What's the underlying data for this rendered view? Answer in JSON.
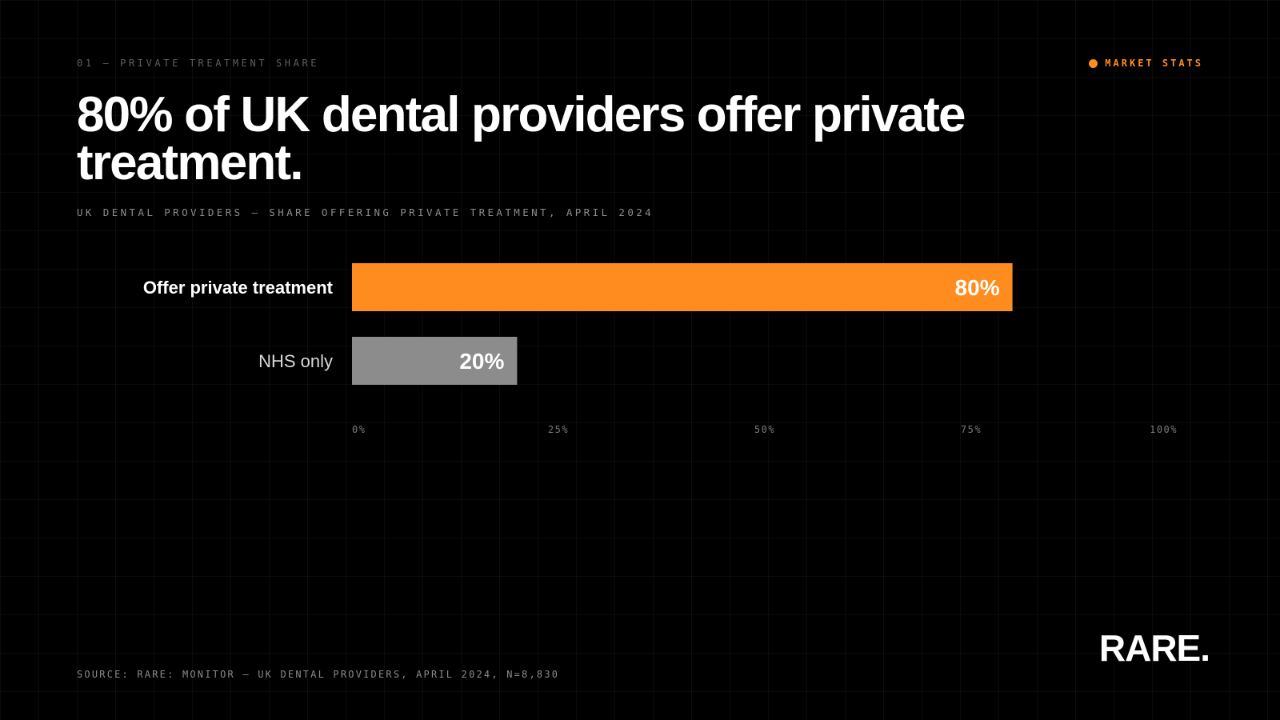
{
  "header": {
    "eyebrow": "01 — PRIVATE TREATMENT SHARE",
    "tag": "MARKET STATS",
    "title": "80% of UK dental providers offer private treatment.",
    "subtitle": "UK DENTAL PROVIDERS — SHARE OFFERING PRIVATE TREATMENT, APRIL 2024"
  },
  "footer": {
    "source": "SOURCE: RARE: MONITOR — UK DENTAL PROVIDERS, APRIL 2024, N=8,830",
    "logo": "RARE."
  },
  "colors": {
    "accent": "#ff8c1f",
    "secondary_bar": "#8c8c8c",
    "background": "#000000"
  },
  "chart_data": {
    "type": "bar",
    "orientation": "horizontal",
    "categories": [
      "Offer private treatment",
      "NHS only"
    ],
    "values": [
      80,
      20
    ],
    "value_labels": [
      "80%",
      "20%"
    ],
    "xlim": [
      0,
      100
    ],
    "x_ticks": [
      "0%",
      "25%",
      "50%",
      "75%",
      "100%"
    ],
    "x_tick_values": [
      0,
      25,
      50,
      75,
      100
    ],
    "grid": true
  }
}
